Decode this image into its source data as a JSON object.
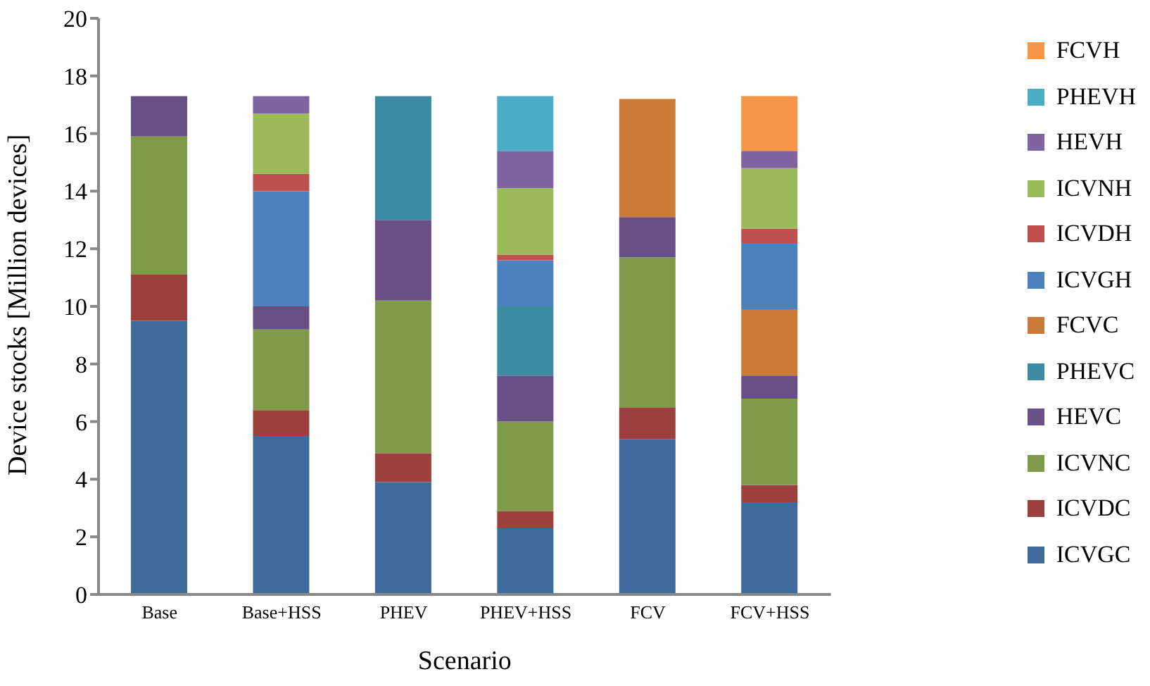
{
  "chart_data": {
    "type": "bar",
    "stacked": true,
    "xlabel": "Scenario",
    "ylabel": "Device stocks [Million devices]",
    "categories": [
      "Base",
      "Base+HSS",
      "PHEV",
      "PHEV+HSS",
      "FCV",
      "FCV+HSS"
    ],
    "series": [
      {
        "name": "ICVGC",
        "color": "#3f6a9c",
        "values": [
          9.5,
          5.5,
          3.9,
          2.3,
          5.4,
          3.2
        ]
      },
      {
        "name": "ICVDC",
        "color": "#9c403e",
        "values": [
          1.6,
          0.9,
          1.0,
          0.6,
          1.1,
          0.6
        ]
      },
      {
        "name": "ICVNC",
        "color": "#7f9a48",
        "values": [
          4.8,
          2.8,
          5.3,
          3.1,
          5.2,
          3.0
        ]
      },
      {
        "name": "HEVC",
        "color": "#684f86",
        "values": [
          1.4,
          0.8,
          2.8,
          1.6,
          1.4,
          0.8
        ]
      },
      {
        "name": "PHEVC",
        "color": "#3b8ba3",
        "values": [
          0,
          0,
          4.3,
          2.4,
          0,
          0
        ]
      },
      {
        "name": "FCVC",
        "color": "#cc7a37",
        "values": [
          0,
          0,
          0,
          0,
          4.1,
          2.3
        ]
      },
      {
        "name": "ICVGH",
        "color": "#4d81bd",
        "values": [
          0,
          4.0,
          0,
          1.6,
          0,
          2.3
        ]
      },
      {
        "name": "ICVDH",
        "color": "#c0504d",
        "values": [
          0,
          0.6,
          0,
          0.2,
          0,
          0.5
        ]
      },
      {
        "name": "ICVNH",
        "color": "#9bbb59",
        "values": [
          0,
          2.1,
          0,
          2.3,
          0,
          2.1
        ]
      },
      {
        "name": "HEVH",
        "color": "#8064a2",
        "values": [
          0,
          0.6,
          0,
          1.3,
          0,
          0.6
        ]
      },
      {
        "name": "PHEVH",
        "color": "#4bacc6",
        "values": [
          0,
          0,
          0,
          1.9,
          0,
          0
        ]
      },
      {
        "name": "FCVH",
        "color": "#f79646",
        "values": [
          0,
          0,
          0,
          0,
          0,
          1.9
        ]
      }
    ],
    "ylim": [
      0,
      20
    ],
    "yticks": [
      0,
      2,
      4,
      6,
      8,
      10,
      12,
      14,
      16,
      18,
      20
    ],
    "grid": false,
    "legend": "right"
  }
}
